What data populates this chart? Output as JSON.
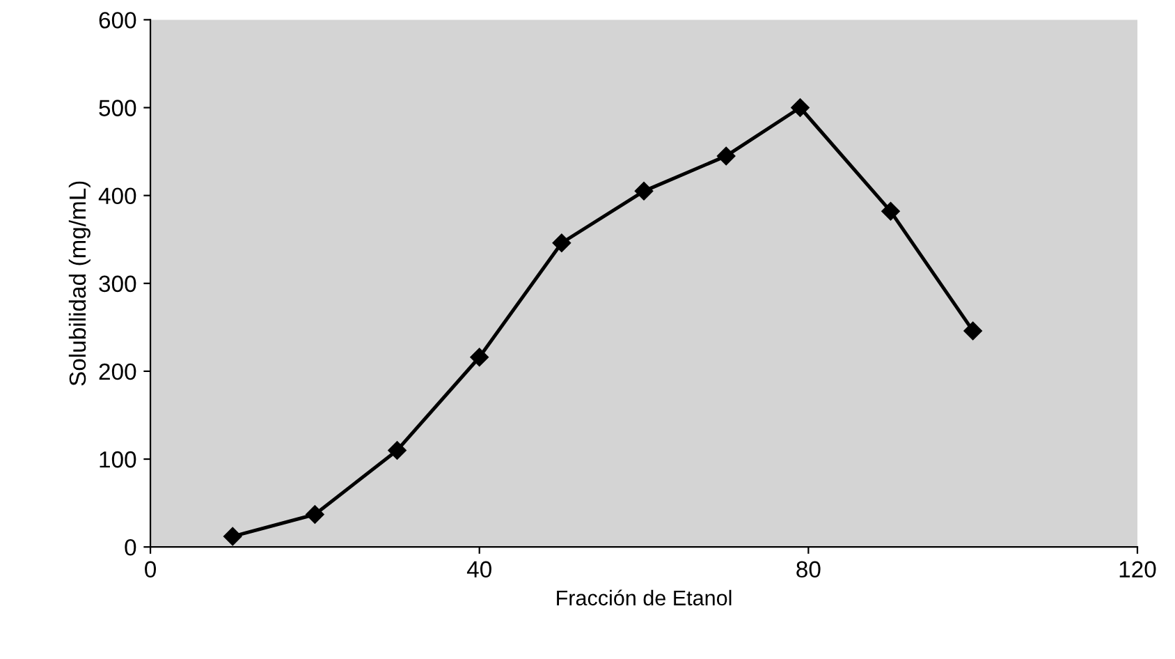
{
  "chart_data": {
    "type": "line",
    "xlabel": "Fracción de Etanol",
    "ylabel": "Solubilidad (mg/mL)",
    "x": [
      10,
      20,
      30,
      40,
      50,
      60,
      70,
      79,
      90,
      100
    ],
    "series": [
      {
        "color": "#000000",
        "values": [
          12,
          37,
          110,
          216,
          346,
          405,
          445,
          500,
          382,
          246
        ]
      }
    ],
    "xlim": [
      0,
      120
    ],
    "xticks": [
      0,
      40,
      80,
      120
    ],
    "ylim": [
      0,
      600
    ],
    "yticks": [
      0,
      100,
      200,
      300,
      400,
      500,
      600
    ],
    "marker": "diamond",
    "grid": false,
    "legend": false
  }
}
